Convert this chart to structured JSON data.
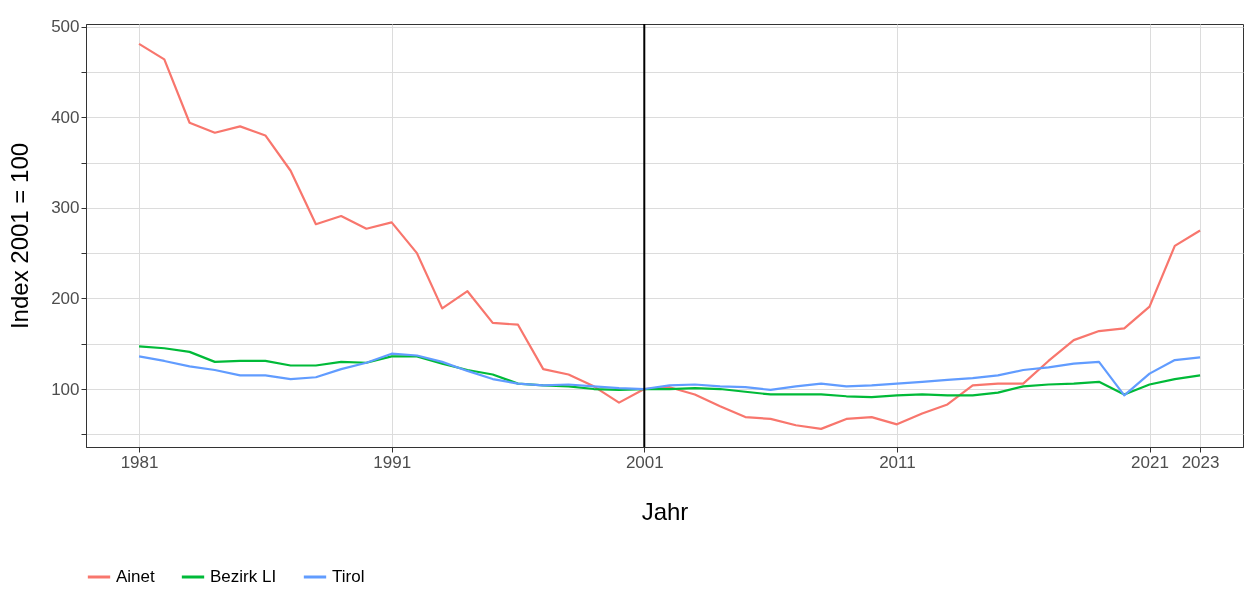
{
  "chart_data": {
    "type": "line",
    "xlabel": "Jahr",
    "ylabel": "Index 2001 = 100",
    "x": [
      1981,
      1982,
      1983,
      1984,
      1985,
      1986,
      1987,
      1988,
      1989,
      1990,
      1991,
      1992,
      1993,
      1994,
      1995,
      1996,
      1997,
      1998,
      1999,
      2000,
      2001,
      2002,
      2003,
      2004,
      2005,
      2006,
      2007,
      2008,
      2009,
      2010,
      2011,
      2012,
      2013,
      2014,
      2015,
      2016,
      2017,
      2018,
      2019,
      2020,
      2021,
      2022,
      2023
    ],
    "series": [
      {
        "name": "Ainet",
        "color": "#f8766d",
        "values": [
          481,
          464,
          394,
          383,
          390,
          380,
          341,
          282,
          291,
          277,
          284,
          250,
          189,
          208,
          173,
          171,
          122,
          116,
          103,
          85,
          100,
          102,
          94,
          81,
          69,
          67,
          60,
          56,
          67,
          69,
          61,
          73,
          83,
          104,
          106,
          106,
          131,
          154,
          164,
          167,
          191,
          258,
          275
        ]
      },
      {
        "name": "Bezirk LI",
        "color": "#00ba38",
        "values": [
          147,
          145,
          141,
          130,
          131,
          131,
          126,
          126,
          130,
          129,
          136,
          136,
          128,
          121,
          116,
          106,
          104,
          103,
          100,
          99,
          100,
          100,
          101,
          100,
          97,
          94,
          94,
          94,
          92,
          91,
          93,
          94,
          93,
          93,
          96,
          103,
          105,
          106,
          108,
          94,
          105,
          111,
          115
        ]
      },
      {
        "name": "Tirol",
        "color": "#619cff",
        "values": [
          136,
          131,
          125,
          121,
          115,
          115,
          111,
          113,
          122,
          129,
          139,
          137,
          130,
          120,
          111,
          106,
          104,
          105,
          103,
          101,
          100,
          104,
          105,
          103,
          102,
          99,
          103,
          106,
          103,
          104,
          106,
          108,
          110,
          112,
          115,
          121,
          124,
          128,
          130,
          93,
          117,
          132,
          135
        ]
      }
    ],
    "xlim": [
      1978.9,
      2024.7
    ],
    "xticks": [
      1981,
      1991,
      2001,
      2011,
      2021,
      2023
    ],
    "ylim": [
      36,
      503
    ],
    "yticks": [
      {
        "value": 50,
        "label": null
      },
      100,
      {
        "value": 150,
        "label": null
      },
      200,
      {
        "value": 250,
        "label": null
      },
      300,
      {
        "value": 350,
        "label": null
      },
      400,
      {
        "value": 450,
        "label": null
      },
      500
    ],
    "ref_lines": [
      {
        "axis": "x",
        "value": 2001,
        "color": "#000000"
      }
    ],
    "grid": true,
    "legend": "bottom",
    "line_style": "solid",
    "marker": "none"
  }
}
